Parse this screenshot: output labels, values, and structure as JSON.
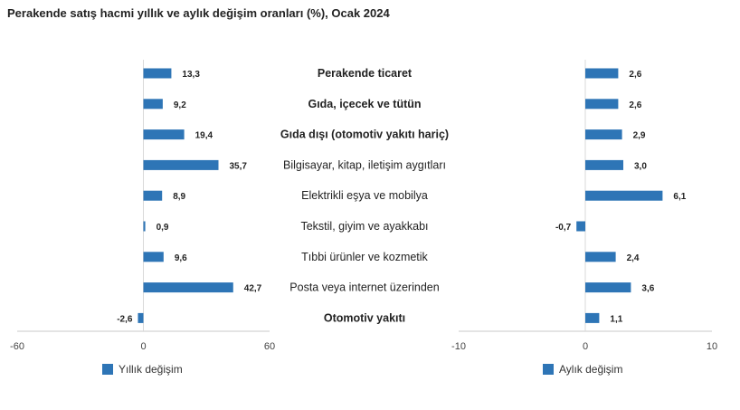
{
  "title": "Perakende satış hacmi yıllık ve aylık değişim oranları (%), Ocak 2024",
  "chart_data": [
    {
      "type": "bar",
      "orientation": "horizontal",
      "categories": [
        "Perakende ticaret",
        "Gıda, içecek ve tütün",
        "Gıda dışı (otomotiv yakıtı hariç)",
        "Bilgisayar, kitap, iletişim aygıtları",
        "Elektrikli eşya ve mobilya",
        "Tekstil, giyim ve ayakkabı",
        "Tıbbi ürünler ve kozmetik",
        "Posta veya internet üzerinden",
        "Otomotiv yakıtı"
      ],
      "bold_categories": [
        0,
        1,
        2,
        8
      ],
      "series": [
        {
          "name": "Yıllık değişim",
          "values": [
            13.3,
            9.2,
            19.4,
            35.7,
            8.9,
            0.9,
            9.6,
            42.7,
            -2.6
          ],
          "labels": [
            "13,3",
            "9,2",
            "19,4",
            "35,7",
            "8,9",
            "0,9",
            "9,6",
            "42,7",
            "-2,6"
          ],
          "color": "#2e75b6"
        }
      ],
      "xlim": [
        -60,
        60
      ],
      "xticks": [
        "-60",
        "0",
        "60"
      ],
      "legend_position": "bottom"
    },
    {
      "type": "bar",
      "orientation": "horizontal",
      "categories": [
        "Perakende ticaret",
        "Gıda, içecek ve tütün",
        "Gıda dışı (otomotiv yakıtı hariç)",
        "Bilgisayar, kitap, iletişim aygıtları",
        "Elektrikli eşya ve mobilya",
        "Tekstil, giyim ve ayakkabı",
        "Tıbbi ürünler ve kozmetik",
        "Posta veya internet üzerinden",
        "Otomotiv yakıtı"
      ],
      "series": [
        {
          "name": "Aylık değişim",
          "values": [
            2.6,
            2.6,
            2.9,
            3.0,
            6.1,
            -0.7,
            2.4,
            3.6,
            1.1
          ],
          "labels": [
            "2,6",
            "2,6",
            "2,9",
            "3,0",
            "6,1",
            "-0,7",
            "2,4",
            "3,6",
            "1,1"
          ],
          "color": "#2e75b6"
        }
      ],
      "xlim": [
        -10,
        10
      ],
      "xticks": [
        "-10",
        "0",
        "10"
      ],
      "legend_position": "bottom"
    }
  ]
}
